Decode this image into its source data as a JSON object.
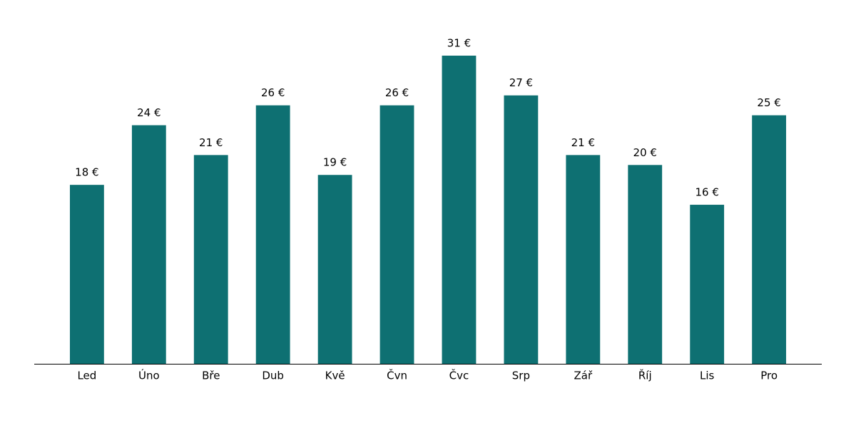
{
  "chart_data": {
    "type": "bar",
    "categories": [
      "Led",
      "Úno",
      "Bře",
      "Dub",
      "Kvě",
      "Čvn",
      "Čvc",
      "Srp",
      "Zář",
      "Říj",
      "Lis",
      "Pro"
    ],
    "values": [
      18,
      24,
      21,
      26,
      19,
      26,
      31,
      27,
      21,
      20,
      16,
      25
    ],
    "value_labels": [
      "18 €",
      "24 €",
      "21 €",
      "26 €",
      "19 €",
      "26 €",
      "31 €",
      "27 €",
      "21 €",
      "20 €",
      "16 €",
      "25 €"
    ],
    "color": "#0e7072",
    "ylim": [
      0,
      32.55
    ]
  }
}
